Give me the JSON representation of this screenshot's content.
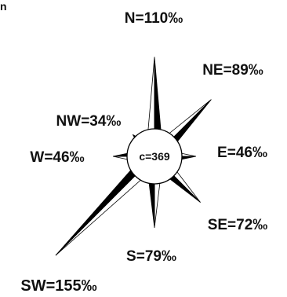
{
  "diagram": {
    "corner_label": "n",
    "center_label": "c=369",
    "directions": [
      {
        "key": "N",
        "label": "N=110‰",
        "value": 110
      },
      {
        "key": "NE",
        "label": "NE=89‰",
        "value": 89
      },
      {
        "key": "E",
        "label": "E=46‰",
        "value": 46
      },
      {
        "key": "SE",
        "label": "SE=72‰",
        "value": 72
      },
      {
        "key": "S",
        "label": "S=79‰",
        "value": 79
      },
      {
        "key": "SW",
        "label": "SW=155‰",
        "value": 155
      },
      {
        "key": "W",
        "label": "W=46‰",
        "value": 46
      },
      {
        "key": "NW",
        "label": "NW=34‰",
        "value": 34
      }
    ],
    "colors": {
      "dark": "#000000",
      "light": "#ffffff",
      "stroke": "#000000"
    }
  }
}
